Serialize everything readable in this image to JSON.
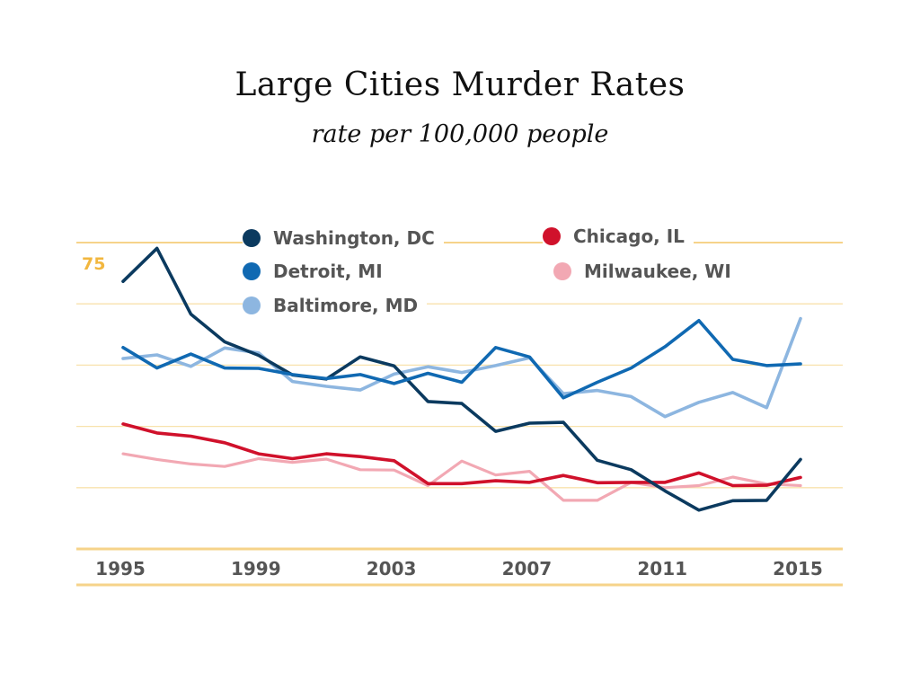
{
  "chart_data": {
    "type": "line",
    "title": "Large Cities Murder Rates",
    "subtitle": "rate per 100,000 people",
    "xlabel": "",
    "ylabel": "",
    "x": [
      1995,
      1996,
      1997,
      1998,
      1999,
      2000,
      2001,
      2002,
      2003,
      2004,
      2005,
      2006,
      2007,
      2008,
      2009,
      2010,
      2011,
      2012,
      2013,
      2014,
      2015
    ],
    "x_tick_labels": [
      "1995",
      "1999",
      "2003",
      "2007",
      "2011",
      "2015"
    ],
    "y_tick_label": "75",
    "y_gridlines": [
      75,
      60,
      45,
      30,
      15
    ],
    "ylim": [
      0,
      79
    ],
    "series": [
      {
        "name": "Washington, DC",
        "color": "#0b3a5f",
        "values": [
          65.5,
          73.6,
          57.5,
          50.7,
          47.4,
          42.6,
          41.6,
          47.0,
          44.8,
          36.1,
          35.6,
          28.8,
          30.8,
          31.0,
          21.7,
          19.4,
          14.2,
          9.5,
          11.8,
          11.9,
          21.9
        ]
      },
      {
        "name": "Detroit, MI",
        "color": "#1069b2",
        "values": [
          49.3,
          44.3,
          47.7,
          44.3,
          44.2,
          42.7,
          41.7,
          42.7,
          40.5,
          43.0,
          40.8,
          49.3,
          47.0,
          37.0,
          40.8,
          44.3,
          49.5,
          55.9,
          46.4,
          44.9,
          45.3
        ]
      },
      {
        "name": "Baltimore, MD",
        "color": "#8db6e0",
        "values": [
          46.6,
          47.5,
          44.7,
          49.2,
          48.0,
          41.0,
          39.8,
          38.9,
          42.8,
          44.6,
          43.2,
          44.9,
          46.8,
          38.0,
          38.8,
          37.3,
          32.4,
          35.9,
          38.3,
          34.6,
          56.4
        ]
      },
      {
        "name": "Chicago, IL",
        "color": "#d0112b",
        "values": [
          30.6,
          28.4,
          27.6,
          26.0,
          23.3,
          22.1,
          23.3,
          22.6,
          21.6,
          16.0,
          16.0,
          16.7,
          16.3,
          18.0,
          16.2,
          16.3,
          16.3,
          18.6,
          15.5,
          15.6,
          17.5
        ]
      },
      {
        "name": "Milwaukee, WI",
        "color": "#f2a8b3",
        "values": [
          23.3,
          21.9,
          20.8,
          20.2,
          22.1,
          21.2,
          22.0,
          19.4,
          19.3,
          15.5,
          21.5,
          18.1,
          19.0,
          11.9,
          11.9,
          16.3,
          15.0,
          15.5,
          17.6,
          15.9,
          15.5
        ]
      }
    ],
    "gridlines": true,
    "legend_position": "top"
  }
}
